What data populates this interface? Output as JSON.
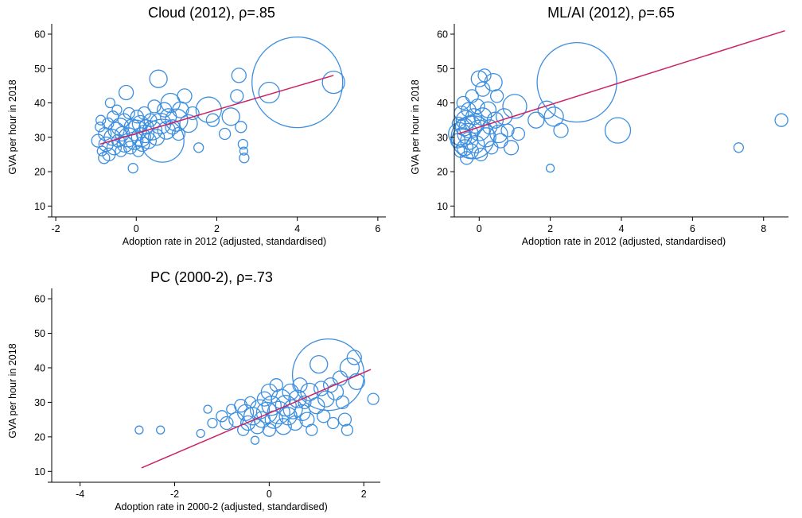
{
  "chart_data": [
    {
      "type": "scatter",
      "title": "Cloud (2012), ρ=.85",
      "xlabel": "Adoption rate in 2012 (adjusted, standardised)",
      "ylabel": "GVA per hour in 2018",
      "xlim": [
        -2.1,
        6.2
      ],
      "ylim": [
        8,
        63
      ],
      "xticks": [
        -2,
        0,
        2,
        4,
        6
      ],
      "yticks": [
        10,
        20,
        30,
        40,
        50,
        60
      ],
      "grid": false,
      "fit_line": {
        "x": [
          -0.9,
          4.9
        ],
        "y": [
          28,
          48
        ]
      },
      "points": [
        {
          "x": -0.95,
          "y": 29,
          "s": 8
        },
        {
          "x": -0.9,
          "y": 33,
          "s": 6
        },
        {
          "x": -0.88,
          "y": 35,
          "s": 6
        },
        {
          "x": -0.85,
          "y": 26,
          "s": 6
        },
        {
          "x": -0.8,
          "y": 24,
          "s": 7
        },
        {
          "x": -0.78,
          "y": 31,
          "s": 8
        },
        {
          "x": -0.75,
          "y": 28,
          "s": 9
        },
        {
          "x": -0.7,
          "y": 34,
          "s": 7
        },
        {
          "x": -0.68,
          "y": 25,
          "s": 8
        },
        {
          "x": -0.65,
          "y": 40,
          "s": 6
        },
        {
          "x": -0.6,
          "y": 30,
          "s": 10
        },
        {
          "x": -0.58,
          "y": 36,
          "s": 7
        },
        {
          "x": -0.55,
          "y": 27,
          "s": 9
        },
        {
          "x": -0.5,
          "y": 32,
          "s": 10
        },
        {
          "x": -0.48,
          "y": 38,
          "s": 6
        },
        {
          "x": -0.45,
          "y": 29,
          "s": 8
        },
        {
          "x": -0.4,
          "y": 33,
          "s": 11
        },
        {
          "x": -0.38,
          "y": 26,
          "s": 7
        },
        {
          "x": -0.35,
          "y": 31,
          "s": 9
        },
        {
          "x": -0.3,
          "y": 35,
          "s": 8
        },
        {
          "x": -0.28,
          "y": 28,
          "s": 10
        },
        {
          "x": -0.25,
          "y": 43,
          "s": 9
        },
        {
          "x": -0.2,
          "y": 30,
          "s": 12
        },
        {
          "x": -0.18,
          "y": 37,
          "s": 7
        },
        {
          "x": -0.15,
          "y": 27,
          "s": 8
        },
        {
          "x": -0.1,
          "y": 33,
          "s": 10
        },
        {
          "x": -0.08,
          "y": 21,
          "s": 6
        },
        {
          "x": -0.05,
          "y": 29,
          "s": 11
        },
        {
          "x": 0.0,
          "y": 32,
          "s": 13
        },
        {
          "x": 0.02,
          "y": 36,
          "s": 8
        },
        {
          "x": 0.05,
          "y": 26,
          "s": 7
        },
        {
          "x": 0.1,
          "y": 34,
          "s": 10
        },
        {
          "x": 0.12,
          "y": 30,
          "s": 12
        },
        {
          "x": 0.15,
          "y": 28,
          "s": 9
        },
        {
          "x": 0.2,
          "y": 37,
          "s": 8
        },
        {
          "x": 0.22,
          "y": 31,
          "s": 11
        },
        {
          "x": 0.25,
          "y": 33,
          "s": 9
        },
        {
          "x": 0.3,
          "y": 29,
          "s": 10
        },
        {
          "x": 0.35,
          "y": 35,
          "s": 8
        },
        {
          "x": 0.4,
          "y": 32,
          "s": 12
        },
        {
          "x": 0.45,
          "y": 39,
          "s": 8
        },
        {
          "x": 0.5,
          "y": 30,
          "s": 10
        },
        {
          "x": 0.55,
          "y": 47,
          "s": 11
        },
        {
          "x": 0.6,
          "y": 34,
          "s": 13
        },
        {
          "x": 0.65,
          "y": 29,
          "s": 27
        },
        {
          "x": 0.7,
          "y": 38,
          "s": 9
        },
        {
          "x": 0.75,
          "y": 32,
          "s": 11
        },
        {
          "x": 0.8,
          "y": 36,
          "s": 10
        },
        {
          "x": 0.85,
          "y": 40,
          "s": 12
        },
        {
          "x": 0.9,
          "y": 33,
          "s": 9
        },
        {
          "x": 1.0,
          "y": 35,
          "s": 14
        },
        {
          "x": 1.05,
          "y": 31,
          "s": 8
        },
        {
          "x": 1.1,
          "y": 38,
          "s": 10
        },
        {
          "x": 1.2,
          "y": 42,
          "s": 9
        },
        {
          "x": 1.3,
          "y": 34,
          "s": 11
        },
        {
          "x": 1.4,
          "y": 37,
          "s": 8
        },
        {
          "x": 1.55,
          "y": 27,
          "s": 6
        },
        {
          "x": 1.8,
          "y": 38,
          "s": 16
        },
        {
          "x": 1.9,
          "y": 35,
          "s": 8
        },
        {
          "x": 2.2,
          "y": 31,
          "s": 7
        },
        {
          "x": 2.35,
          "y": 36,
          "s": 11
        },
        {
          "x": 2.5,
          "y": 42,
          "s": 8
        },
        {
          "x": 2.55,
          "y": 48,
          "s": 9
        },
        {
          "x": 2.6,
          "y": 33,
          "s": 7
        },
        {
          "x": 2.65,
          "y": 28,
          "s": 6
        },
        {
          "x": 2.67,
          "y": 26,
          "s": 5
        },
        {
          "x": 2.68,
          "y": 24,
          "s": 6
        },
        {
          "x": 3.3,
          "y": 43,
          "s": 13
        },
        {
          "x": 4.0,
          "y": 46,
          "s": 57
        },
        {
          "x": 4.9,
          "y": 46,
          "s": 14
        }
      ]
    },
    {
      "type": "scatter",
      "title": "ML/AI (2012), ρ=.65",
      "xlabel": "Adoption rate in 2012 (adjusted, standardised)",
      "ylabel": "GVA per hour in 2018",
      "xlim": [
        -0.7,
        8.7
      ],
      "ylim": [
        8,
        63
      ],
      "xticks": [
        0,
        2,
        4,
        6,
        8
      ],
      "yticks": [
        10,
        20,
        30,
        40,
        50,
        60
      ],
      "grid": false,
      "fit_line": {
        "x": [
          -0.6,
          8.6
        ],
        "y": [
          31,
          61
        ]
      },
      "points": [
        {
          "x": -0.6,
          "y": 29,
          "s": 9
        },
        {
          "x": -0.58,
          "y": 34,
          "s": 8
        },
        {
          "x": -0.55,
          "y": 31,
          "s": 14
        },
        {
          "x": -0.52,
          "y": 26,
          "s": 8
        },
        {
          "x": -0.5,
          "y": 37,
          "s": 9
        },
        {
          "x": -0.48,
          "y": 30,
          "s": 12
        },
        {
          "x": -0.45,
          "y": 40,
          "s": 8
        },
        {
          "x": -0.42,
          "y": 33,
          "s": 11
        },
        {
          "x": -0.4,
          "y": 27,
          "s": 10
        },
        {
          "x": -0.38,
          "y": 35,
          "s": 12
        },
        {
          "x": -0.35,
          "y": 24,
          "s": 8
        },
        {
          "x": -0.32,
          "y": 31,
          "s": 13
        },
        {
          "x": -0.3,
          "y": 38,
          "s": 9
        },
        {
          "x": -0.28,
          "y": 29,
          "s": 11
        },
        {
          "x": -0.25,
          "y": 33,
          "s": 14
        },
        {
          "x": -0.22,
          "y": 26,
          "s": 9
        },
        {
          "x": -0.2,
          "y": 42,
          "s": 8
        },
        {
          "x": -0.18,
          "y": 30,
          "s": 27
        },
        {
          "x": -0.15,
          "y": 36,
          "s": 10
        },
        {
          "x": -0.12,
          "y": 34,
          "s": 12
        },
        {
          "x": -0.1,
          "y": 28,
          "s": 11
        },
        {
          "x": -0.05,
          "y": 39,
          "s": 9
        },
        {
          "x": 0.0,
          "y": 47,
          "s": 10
        },
        {
          "x": 0.0,
          "y": 32,
          "s": 13
        },
        {
          "x": 0.05,
          "y": 25,
          "s": 8
        },
        {
          "x": 0.1,
          "y": 44,
          "s": 9
        },
        {
          "x": 0.1,
          "y": 36,
          "s": 11
        },
        {
          "x": 0.15,
          "y": 48,
          "s": 8
        },
        {
          "x": 0.2,
          "y": 30,
          "s": 12
        },
        {
          "x": 0.25,
          "y": 38,
          "s": 10
        },
        {
          "x": 0.3,
          "y": 33,
          "s": 9
        },
        {
          "x": 0.35,
          "y": 27,
          "s": 8
        },
        {
          "x": 0.4,
          "y": 46,
          "s": 11
        },
        {
          "x": 0.45,
          "y": 35,
          "s": 10
        },
        {
          "x": 0.5,
          "y": 42,
          "s": 8
        },
        {
          "x": 0.55,
          "y": 31,
          "s": 11
        },
        {
          "x": 0.6,
          "y": 29,
          "s": 9
        },
        {
          "x": 0.7,
          "y": 36,
          "s": 10
        },
        {
          "x": 0.8,
          "y": 32,
          "s": 8
        },
        {
          "x": 0.9,
          "y": 27,
          "s": 9
        },
        {
          "x": 1.0,
          "y": 39,
          "s": 15
        },
        {
          "x": 1.1,
          "y": 31,
          "s": 8
        },
        {
          "x": 1.6,
          "y": 35,
          "s": 10
        },
        {
          "x": 1.9,
          "y": 38,
          "s": 11
        },
        {
          "x": 2.0,
          "y": 21,
          "s": 5
        },
        {
          "x": 2.1,
          "y": 36,
          "s": 12
        },
        {
          "x": 2.3,
          "y": 32,
          "s": 9
        },
        {
          "x": 2.75,
          "y": 46,
          "s": 50
        },
        {
          "x": 3.9,
          "y": 32,
          "s": 16
        },
        {
          "x": 7.3,
          "y": 27,
          "s": 6
        },
        {
          "x": 8.5,
          "y": 35,
          "s": 8
        }
      ]
    },
    {
      "type": "scatter",
      "title": "PC (2000-2), ρ=.73",
      "xlabel": "Adoption rate in 2000-2 (adjusted, standardised)",
      "ylabel": "GVA per hour in 2018",
      "xlim": [
        -4.6,
        2.35
      ],
      "ylim": [
        8,
        63
      ],
      "xticks": [
        -4,
        -2,
        0,
        2
      ],
      "yticks": [
        10,
        20,
        30,
        40,
        50,
        60
      ],
      "grid": false,
      "fit_line": {
        "x": [
          -2.7,
          2.15
        ],
        "y": [
          11,
          39.5
        ]
      },
      "points": [
        {
          "x": -2.75,
          "y": 22,
          "s": 5
        },
        {
          "x": -2.3,
          "y": 22,
          "s": 5
        },
        {
          "x": -1.45,
          "y": 21,
          "s": 5
        },
        {
          "x": -1.3,
          "y": 28,
          "s": 5
        },
        {
          "x": -1.2,
          "y": 24,
          "s": 6
        },
        {
          "x": -1.0,
          "y": 26,
          "s": 7
        },
        {
          "x": -0.9,
          "y": 24,
          "s": 8
        },
        {
          "x": -0.8,
          "y": 28,
          "s": 6
        },
        {
          "x": -0.7,
          "y": 25,
          "s": 9
        },
        {
          "x": -0.6,
          "y": 29,
          "s": 8
        },
        {
          "x": -0.55,
          "y": 22,
          "s": 7
        },
        {
          "x": -0.5,
          "y": 27,
          "s": 10
        },
        {
          "x": -0.45,
          "y": 24,
          "s": 9
        },
        {
          "x": -0.4,
          "y": 30,
          "s": 7
        },
        {
          "x": -0.35,
          "y": 26,
          "s": 11
        },
        {
          "x": -0.3,
          "y": 19,
          "s": 5
        },
        {
          "x": -0.25,
          "y": 23,
          "s": 9
        },
        {
          "x": -0.2,
          "y": 28,
          "s": 12
        },
        {
          "x": -0.15,
          "y": 25,
          "s": 10
        },
        {
          "x": -0.1,
          "y": 31,
          "s": 9
        },
        {
          "x": -0.05,
          "y": 27,
          "s": 13
        },
        {
          "x": 0.0,
          "y": 22,
          "s": 8
        },
        {
          "x": 0.0,
          "y": 33,
          "s": 10
        },
        {
          "x": 0.05,
          "y": 29,
          "s": 12
        },
        {
          "x": 0.1,
          "y": 25,
          "s": 11
        },
        {
          "x": 0.15,
          "y": 35,
          "s": 8
        },
        {
          "x": 0.2,
          "y": 27,
          "s": 14
        },
        {
          "x": 0.25,
          "y": 31,
          "s": 12
        },
        {
          "x": 0.3,
          "y": 23,
          "s": 10
        },
        {
          "x": 0.35,
          "y": 29,
          "s": 13
        },
        {
          "x": 0.4,
          "y": 26,
          "s": 11
        },
        {
          "x": 0.45,
          "y": 33,
          "s": 10
        },
        {
          "x": 0.5,
          "y": 28,
          "s": 12
        },
        {
          "x": 0.55,
          "y": 24,
          "s": 9
        },
        {
          "x": 0.6,
          "y": 31,
          "s": 11
        },
        {
          "x": 0.65,
          "y": 35,
          "s": 9
        },
        {
          "x": 0.7,
          "y": 27,
          "s": 10
        },
        {
          "x": 0.75,
          "y": 30,
          "s": 8
        },
        {
          "x": 0.8,
          "y": 25,
          "s": 9
        },
        {
          "x": 0.85,
          "y": 33,
          "s": 11
        },
        {
          "x": 0.9,
          "y": 22,
          "s": 7
        },
        {
          "x": 1.0,
          "y": 29,
          "s": 10
        },
        {
          "x": 1.05,
          "y": 41,
          "s": 11
        },
        {
          "x": 1.1,
          "y": 34,
          "s": 9
        },
        {
          "x": 1.15,
          "y": 26,
          "s": 8
        },
        {
          "x": 1.2,
          "y": 31,
          "s": 10
        },
        {
          "x": 1.25,
          "y": 38,
          "s": 45
        },
        {
          "x": 1.3,
          "y": 35,
          "s": 9
        },
        {
          "x": 1.35,
          "y": 24,
          "s": 7
        },
        {
          "x": 1.4,
          "y": 33,
          "s": 10
        },
        {
          "x": 1.5,
          "y": 37,
          "s": 9
        },
        {
          "x": 1.55,
          "y": 30,
          "s": 8
        },
        {
          "x": 1.6,
          "y": 25,
          "s": 8
        },
        {
          "x": 1.65,
          "y": 22,
          "s": 7
        },
        {
          "x": 1.7,
          "y": 40,
          "s": 12
        },
        {
          "x": 1.8,
          "y": 43,
          "s": 9
        },
        {
          "x": 1.85,
          "y": 36,
          "s": 10
        },
        {
          "x": 2.2,
          "y": 31,
          "s": 7
        }
      ]
    }
  ]
}
